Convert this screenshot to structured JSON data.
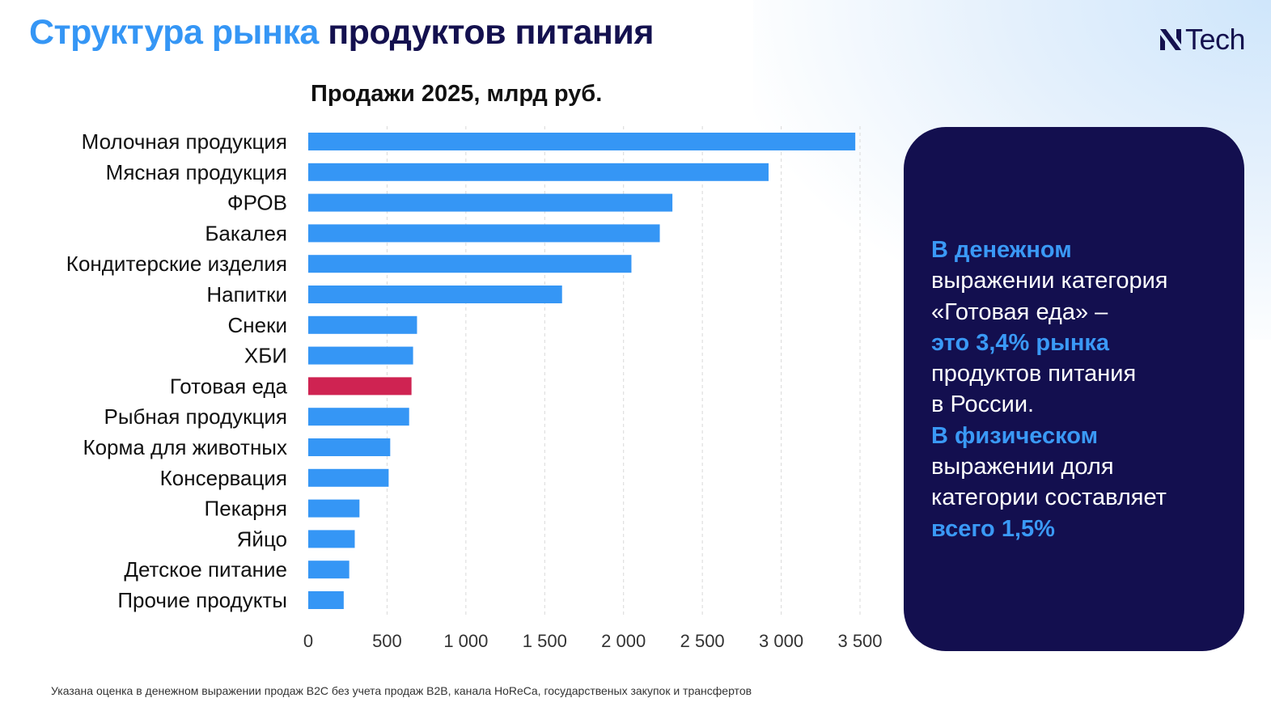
{
  "header": {
    "title_part1": "Структура рынка",
    "title_part2": "продуктов питания",
    "logo_text": "Tech"
  },
  "chart_data": {
    "type": "bar",
    "orientation": "horizontal",
    "title": "Продажи 2025, млрд руб.",
    "xlabel": "",
    "ylabel": "",
    "xlim": [
      0,
      3500
    ],
    "grid": true,
    "categories": [
      "Молочная продукция",
      "Мясная продукция",
      "ФРОВ",
      "Бакалея",
      "Кондитерские изделия",
      "Напитки",
      "Снеки",
      "ХБИ",
      "Готовая еда",
      "Рыбная продукция",
      "Корма для животных",
      "Консервация",
      "Пекарня",
      "Яйцо",
      "Детское питание",
      "Прочие продукты"
    ],
    "values": [
      3470,
      2920,
      2310,
      2230,
      2050,
      1610,
      690,
      665,
      655,
      640,
      520,
      510,
      325,
      295,
      260,
      225
    ],
    "highlight_category": "Готовая еда",
    "ticks": [
      {
        "value": 0,
        "label": "0"
      },
      {
        "value": 500,
        "label": "500"
      },
      {
        "value": 1000,
        "label": "1 000"
      },
      {
        "value": 1500,
        "label": "1 500"
      },
      {
        "value": 2000,
        "label": "2 000"
      },
      {
        "value": 2500,
        "label": "2 500"
      },
      {
        "value": 3000,
        "label": "3 000"
      },
      {
        "value": 3500,
        "label": "3 500"
      }
    ]
  },
  "panel": {
    "line1": "В денежном",
    "line2": "выражении категория",
    "line3": "«Готовая еда» –",
    "line4": "это 3,4% рынка",
    "line5": "продуктов питания",
    "line6": "в России.",
    "line7": "В физическом",
    "line8": "выражении доля",
    "line9": "категории составляет",
    "line10": "всего 1,5%"
  },
  "footnote": "Указана оценка в денежном выражении продаж B2C без учета продаж B2B, канала HoReCa, государственых закупок и трансфертов",
  "colors": {
    "bar": "#3596f5",
    "bar_highlight": "#cf2352",
    "accent_blue": "#3a99f6",
    "navy": "#130f4f",
    "grid": "#d9d9d9"
  }
}
